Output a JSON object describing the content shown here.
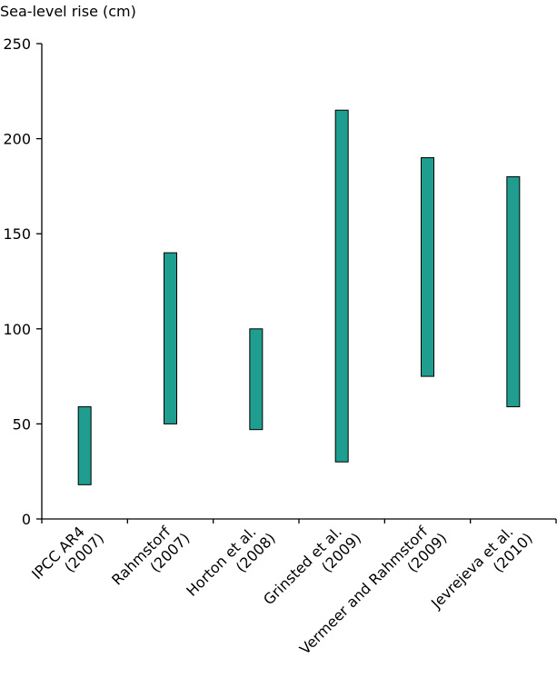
{
  "chart_data": {
    "type": "bar",
    "subtype": "floating-range",
    "title": "",
    "ylabel": "Sea-level rise (cm)",
    "xlabel": "",
    "ylim": [
      0,
      250
    ],
    "yticks": [
      "0",
      "50",
      "100",
      "150",
      "200",
      "250"
    ],
    "grid": false,
    "legend": "none",
    "bar_color": "#1f9e8f",
    "bar_edge_color": "#000000",
    "categories": [
      {
        "line1": "IPCC AR4",
        "line2": "(2007)"
      },
      {
        "line1": "Rahmstorf",
        "line2": "(2007)"
      },
      {
        "line1": "Horton et al.",
        "line2": "(2008)"
      },
      {
        "line1": "Grinsted et al.",
        "line2": "(2009)"
      },
      {
        "line1": "Vermeer and Rahmstorf",
        "line2": "(2009)"
      },
      {
        "line1": "Jevrejeva et al.",
        "line2": "(2010)"
      }
    ],
    "ranges": [
      {
        "low": 18,
        "high": 59
      },
      {
        "low": 50,
        "high": 140
      },
      {
        "low": 47,
        "high": 100
      },
      {
        "low": 30,
        "high": 215
      },
      {
        "low": 75,
        "high": 190
      },
      {
        "low": 59,
        "high": 180
      }
    ]
  }
}
